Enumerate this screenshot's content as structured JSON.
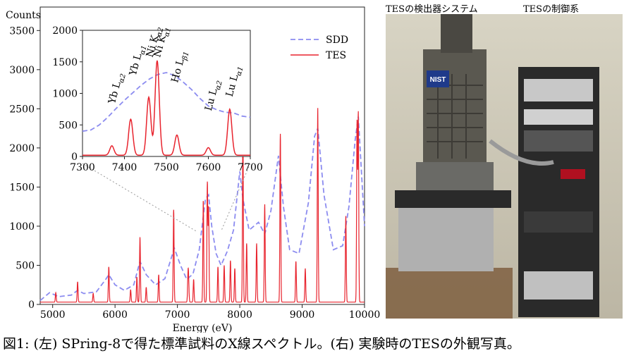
{
  "caption": "図1: (左) SPring-8で得た標準試料のX線スペクトル。(右) 実験時のTESの外観写真。",
  "photo": {
    "label_left": "TESの検出器システム",
    "label_right": "TESの制御系",
    "nist_logo_text": "NIST"
  },
  "chart_data": [
    {
      "type": "line",
      "ylabel": "Counts",
      "xlabel": "Energy (eV)",
      "xlim": [
        4800,
        10000
      ],
      "ylim": [
        0,
        3800
      ],
      "xticks": [
        5000,
        6000,
        7000,
        8000,
        9000,
        10000
      ],
      "yticks": [
        0,
        500,
        1000,
        1500,
        2000,
        2500,
        3000,
        3500
      ],
      "legend": {
        "position": "top-right",
        "entries": [
          "SDD",
          "TES"
        ]
      },
      "colors": {
        "SDD": "#8c8cf0",
        "TES": "#e8242e"
      },
      "series": [
        {
          "name": "SDD",
          "style": "dashed",
          "x": [
            4800,
            4950,
            5100,
            5300,
            5400,
            5500,
            5700,
            5850,
            5900,
            6000,
            6150,
            6300,
            6400,
            6500,
            6650,
            6800,
            6950,
            7050,
            7150,
            7250,
            7350,
            7450,
            7500,
            7550,
            7620,
            7700,
            7800,
            7900,
            8000,
            8050,
            8150,
            8300,
            8400,
            8500,
            8620,
            8700,
            8800,
            8950,
            9100,
            9200,
            9250,
            9350,
            9500,
            9650,
            9750,
            9850,
            9900,
            10000
          ],
          "y": [
            50,
            150,
            100,
            120,
            180,
            140,
            160,
            320,
            380,
            250,
            180,
            250,
            550,
            380,
            250,
            330,
            720,
            500,
            320,
            390,
            700,
            1350,
            1400,
            1000,
            650,
            500,
            680,
            950,
            1700,
            1350,
            950,
            1050,
            900,
            1200,
            1900,
            1250,
            700,
            650,
            1300,
            2150,
            2250,
            1400,
            700,
            750,
            1250,
            2100,
            2400,
            1000
          ]
        },
        {
          "name": "TES",
          "style": "solid",
          "peaks_x": [
            5050,
            5400,
            5650,
            5900,
            6250,
            6350,
            6400,
            6500,
            6700,
            6940,
            7170,
            7180,
            7260,
            7415,
            7480,
            7500,
            7650,
            7750,
            7850,
            7920,
            8050,
            8110,
            8270,
            8400,
            8650,
            8900,
            9050,
            9250,
            9700,
            9880,
            9900
          ],
          "peaks_y": [
            120,
            260,
            110,
            450,
            160,
            320,
            830,
            190,
            350,
            1180,
            330,
            220,
            290,
            1300,
            1520,
            1200,
            450,
            470,
            530,
            430,
            2150,
            750,
            750,
            1250,
            2150,
            520,
            430,
            2480,
            1100,
            2290,
            2400
          ],
          "baseline": 30
        }
      ]
    },
    {
      "type": "line",
      "inset": true,
      "xlim": [
        7300,
        7700
      ],
      "ylim": [
        0,
        2000
      ],
      "xticks": [
        7300,
        7400,
        7500,
        7600,
        7700
      ],
      "yticks": [
        0,
        500,
        1000,
        1500,
        2000
      ],
      "annotations": [
        {
          "label": "Yb L",
          "greek": "α2",
          "x": 7370
        },
        {
          "label": "Yb L",
          "greek": "α1",
          "x": 7420
        },
        {
          "label": "Ni K",
          "greek": "α2",
          "x": 7460
        },
        {
          "label": "Ni K",
          "greek": "α1",
          "x": 7478
        },
        {
          "label": "Ho L",
          "greek": "β1",
          "x": 7520
        },
        {
          "label": "Lu L",
          "greek": "α2",
          "x": 7600
        },
        {
          "label": "Lu L",
          "greek": "α1",
          "x": 7650
        }
      ],
      "series": [
        {
          "name": "SDD",
          "x": [
            7300,
            7320,
            7340,
            7360,
            7380,
            7400,
            7420,
            7440,
            7460,
            7480,
            7500,
            7520,
            7540,
            7560,
            7580,
            7600,
            7620,
            7640,
            7660,
            7680,
            7700
          ],
          "y": [
            400,
            420,
            500,
            620,
            760,
            890,
            1010,
            1130,
            1230,
            1300,
            1330,
            1280,
            1180,
            1060,
            920,
            800,
            740,
            700,
            690,
            640,
            620
          ]
        },
        {
          "name": "TES",
          "peaks_x": [
            7370,
            7415,
            7458,
            7478,
            7525,
            7600,
            7651
          ],
          "peaks_y": [
            150,
            570,
            920,
            1500,
            320,
            120,
            730
          ],
          "baseline": 20
        }
      ]
    }
  ]
}
